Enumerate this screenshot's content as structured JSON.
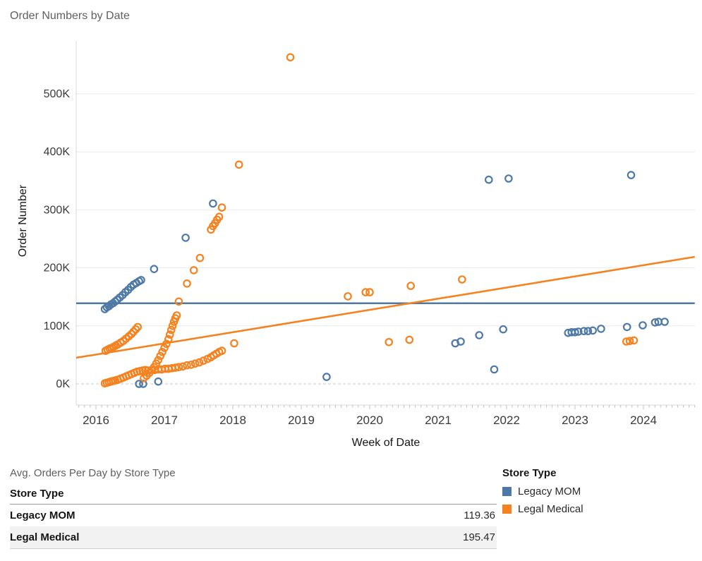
{
  "title": "Order Numbers by Date",
  "chart_data": {
    "type": "scatter",
    "title": "Order Numbers by Date",
    "xlabel": "Week of Date",
    "ylabel": "Order Number",
    "grid": true,
    "legend_position": "bottom-right",
    "xlim": [
      2015.71,
      2024.75
    ],
    "ylim_thousands": [
      -38,
      590
    ],
    "x_ticks": [
      2016,
      2017,
      2018,
      2019,
      2020,
      2021,
      2022,
      2023,
      2024
    ],
    "y_ticks": [
      {
        "v": 0,
        "label": "0K"
      },
      {
        "v": 100,
        "label": "100K"
      },
      {
        "v": 200,
        "label": "200K"
      },
      {
        "v": 300,
        "label": "300K"
      },
      {
        "v": 400,
        "label": "400K"
      },
      {
        "v": 500,
        "label": "500K"
      }
    ],
    "series": [
      {
        "name": "Legacy MOM",
        "color": "#4e79a7",
        "points_year_valueK": [
          [
            2016.13,
            129
          ],
          [
            2016.16,
            132
          ],
          [
            2016.19,
            134
          ],
          [
            2016.22,
            137
          ],
          [
            2016.25,
            139
          ],
          [
            2016.28,
            142
          ],
          [
            2016.31,
            145
          ],
          [
            2016.35,
            149
          ],
          [
            2016.39,
            153
          ],
          [
            2016.43,
            158
          ],
          [
            2016.47,
            162
          ],
          [
            2016.51,
            167
          ],
          [
            2016.55,
            171
          ],
          [
            2016.59,
            174
          ],
          [
            2016.63,
            177
          ],
          [
            2016.66,
            179
          ],
          [
            2016.85,
            198
          ],
          [
            2016.63,
            0
          ],
          [
            2016.69,
            0
          ],
          [
            2016.91,
            4
          ],
          [
            2017.31,
            252
          ],
          [
            2017.71,
            311
          ],
          [
            2019.37,
            12
          ],
          [
            2021.25,
            70
          ],
          [
            2021.33,
            73
          ],
          [
            2021.6,
            84
          ],
          [
            2021.74,
            352
          ],
          [
            2021.82,
            25
          ],
          [
            2021.95,
            94
          ],
          [
            2022.03,
            354
          ],
          [
            2022.9,
            88
          ],
          [
            2022.95,
            89
          ],
          [
            2023.0,
            89
          ],
          [
            2023.05,
            90
          ],
          [
            2023.13,
            91
          ],
          [
            2023.19,
            91
          ],
          [
            2023.26,
            92
          ],
          [
            2023.38,
            95
          ],
          [
            2023.76,
            98
          ],
          [
            2023.82,
            360
          ],
          [
            2023.99,
            101
          ],
          [
            2024.17,
            106
          ],
          [
            2024.22,
            107
          ],
          [
            2024.31,
            107
          ]
        ]
      },
      {
        "name": "Legal Medical",
        "color": "#f5821f",
        "points_year_valueK": [
          [
            2016.14,
            57
          ],
          [
            2016.17,
            59
          ],
          [
            2016.2,
            61
          ],
          [
            2016.23,
            62
          ],
          [
            2016.26,
            64
          ],
          [
            2016.29,
            66
          ],
          [
            2016.32,
            68
          ],
          [
            2016.36,
            71
          ],
          [
            2016.4,
            74
          ],
          [
            2016.44,
            78
          ],
          [
            2016.48,
            82
          ],
          [
            2016.52,
            86
          ],
          [
            2016.55,
            90
          ],
          [
            2016.58,
            94
          ],
          [
            2016.61,
            98
          ],
          [
            2016.13,
            1
          ],
          [
            2016.16,
            2
          ],
          [
            2016.19,
            3
          ],
          [
            2016.22,
            4
          ],
          [
            2016.25,
            5
          ],
          [
            2016.28,
            6
          ],
          [
            2016.32,
            7
          ],
          [
            2016.36,
            9
          ],
          [
            2016.4,
            11
          ],
          [
            2016.44,
            13
          ],
          [
            2016.48,
            15
          ],
          [
            2016.52,
            17
          ],
          [
            2016.56,
            19
          ],
          [
            2016.6,
            21
          ],
          [
            2016.64,
            22
          ],
          [
            2016.68,
            23
          ],
          [
            2016.72,
            24
          ],
          [
            2016.7,
            10
          ],
          [
            2016.74,
            14
          ],
          [
            2016.78,
            19
          ],
          [
            2016.82,
            24
          ],
          [
            2016.85,
            29
          ],
          [
            2016.88,
            35
          ],
          [
            2016.91,
            41
          ],
          [
            2016.94,
            48
          ],
          [
            2016.97,
            55
          ],
          [
            2017.0,
            62
          ],
          [
            2017.03,
            69
          ],
          [
            2017.06,
            77
          ],
          [
            2017.08,
            85
          ],
          [
            2017.1,
            93
          ],
          [
            2017.12,
            100
          ],
          [
            2017.14,
            107
          ],
          [
            2017.16,
            113
          ],
          [
            2017.18,
            118
          ],
          [
            2017.21,
            142
          ],
          [
            2017.33,
            173
          ],
          [
            2017.43,
            196
          ],
          [
            2017.52,
            217
          ],
          [
            2017.68,
            266
          ],
          [
            2017.71,
            272
          ],
          [
            2017.74,
            277
          ],
          [
            2017.77,
            283
          ],
          [
            2017.8,
            288
          ],
          [
            2017.84,
            304
          ],
          [
            2016.76,
            23
          ],
          [
            2016.81,
            24
          ],
          [
            2016.86,
            24
          ],
          [
            2016.91,
            25
          ],
          [
            2016.96,
            25
          ],
          [
            2017.01,
            26
          ],
          [
            2017.06,
            26
          ],
          [
            2017.11,
            27
          ],
          [
            2017.16,
            28
          ],
          [
            2017.21,
            29
          ],
          [
            2017.27,
            30
          ],
          [
            2017.33,
            32
          ],
          [
            2017.39,
            33
          ],
          [
            2017.45,
            35
          ],
          [
            2017.51,
            37
          ],
          [
            2017.57,
            40
          ],
          [
            2017.63,
            43
          ],
          [
            2017.68,
            46
          ],
          [
            2017.72,
            49
          ],
          [
            2017.76,
            52
          ],
          [
            2017.8,
            55
          ],
          [
            2017.84,
            57
          ],
          [
            2018.02,
            70
          ],
          [
            2018.09,
            378
          ],
          [
            2018.84,
            563
          ],
          [
            2019.68,
            151
          ],
          [
            2019.94,
            158
          ],
          [
            2020.0,
            158
          ],
          [
            2020.28,
            72
          ],
          [
            2020.58,
            76
          ],
          [
            2020.6,
            169
          ],
          [
            2021.35,
            180
          ],
          [
            2023.75,
            73
          ],
          [
            2023.8,
            74
          ],
          [
            2023.86,
            75
          ]
        ]
      }
    ],
    "trend_lines": [
      {
        "series": "Legacy MOM",
        "color": "#4e79a7",
        "x1": 2015.71,
        "y1K": 139,
        "x2": 2024.75,
        "y2K": 139
      },
      {
        "series": "Legal Medical",
        "color": "#f5821f",
        "x1": 2015.71,
        "y1K": 45,
        "x2": 2024.75,
        "y2K": 219
      }
    ],
    "style": {
      "gridline_color": "#e9e9e9",
      "zero_line_color": "#c8c8c8",
      "axis_line_color": "#d9d9d9",
      "tick_color": "#c0c0c0",
      "tick_label_color": "#3a3a3a"
    }
  },
  "table": {
    "caption": "Avg. Orders Per Day by Store Type",
    "header": "Store Type",
    "rows": [
      {
        "label": "Legacy MOM",
        "value": "119.36"
      },
      {
        "label": "Legal Medical",
        "value": "195.47"
      }
    ]
  },
  "legend": {
    "title": "Store Type",
    "items": [
      {
        "label": "Legacy MOM",
        "color": "#4e79a7"
      },
      {
        "label": "Legal Medical",
        "color": "#f5821f"
      }
    ]
  }
}
